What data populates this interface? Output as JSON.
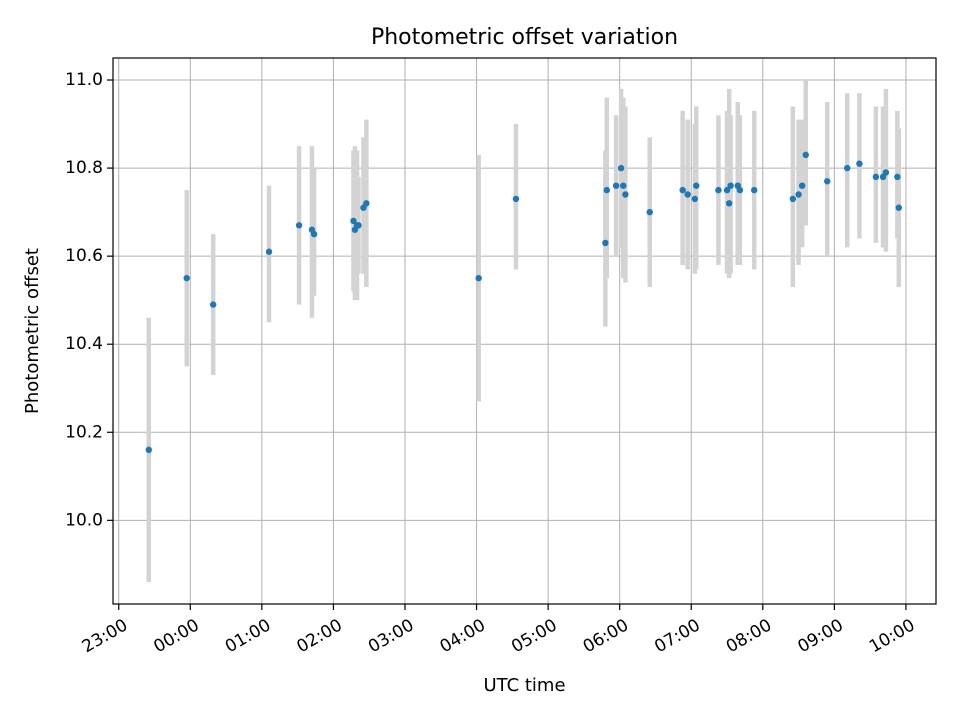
{
  "chart_data": {
    "type": "scatter",
    "title": "Photometric offset variation",
    "xlabel": "UTC time",
    "ylabel": "Photometric offset",
    "x_axis": {
      "kind": "time",
      "unit": "hours",
      "range": [
        -1.08,
        10.42
      ],
      "ticks": [
        -1,
        0,
        1,
        2,
        3,
        4,
        5,
        6,
        7,
        8,
        9,
        10
      ],
      "tick_labels": [
        "23:00",
        "00:00",
        "01:00",
        "02:00",
        "03:00",
        "04:00",
        "05:00",
        "06:00",
        "07:00",
        "08:00",
        "09:00",
        "10:00"
      ],
      "tick_label_rotation": 30
    },
    "y_axis": {
      "range": [
        9.81,
        11.05
      ],
      "ticks": [
        10.0,
        10.2,
        10.4,
        10.6,
        10.8,
        11.0
      ],
      "tick_labels": [
        "10.0",
        "10.2",
        "10.4",
        "10.6",
        "10.8",
        "11.0"
      ]
    },
    "grid": true,
    "errorbar_color": "#d3d3d3",
    "marker_color": "#1f77b4",
    "series": [
      {
        "x": [
          -0.58,
          -0.05,
          0.32,
          1.1,
          1.52,
          1.7,
          1.73,
          2.28,
          2.3,
          2.33,
          2.35,
          2.42,
          2.46,
          4.03,
          4.55,
          5.8,
          5.82,
          5.95,
          6.02,
          6.05,
          6.08,
          6.42,
          6.88,
          6.95,
          7.05,
          7.07,
          7.38,
          7.5,
          7.53,
          7.55,
          7.65,
          7.68,
          7.88,
          8.42,
          8.5,
          8.55,
          8.6,
          8.9,
          9.18,
          9.35,
          9.58,
          9.68,
          9.72,
          9.88,
          9.9
        ],
        "y": [
          10.16,
          10.55,
          10.49,
          10.61,
          10.67,
          10.66,
          10.65,
          10.68,
          10.66,
          10.67,
          10.67,
          10.71,
          10.72,
          10.55,
          10.73,
          10.63,
          10.75,
          10.76,
          10.8,
          10.76,
          10.74,
          10.7,
          10.75,
          10.74,
          10.73,
          10.76,
          10.75,
          10.75,
          10.72,
          10.76,
          10.76,
          10.75,
          10.75,
          10.73,
          10.74,
          10.76,
          10.83,
          10.77,
          10.8,
          10.81,
          10.78,
          10.78,
          10.79,
          10.78,
          10.71
        ],
        "yerr_low": [
          9.86,
          10.35,
          10.33,
          10.45,
          10.49,
          10.46,
          10.51,
          10.52,
          10.5,
          10.5,
          10.56,
          10.56,
          10.53,
          10.27,
          10.57,
          10.44,
          10.55,
          10.6,
          10.62,
          10.55,
          10.54,
          10.53,
          10.58,
          10.57,
          10.56,
          10.57,
          10.58,
          10.56,
          10.55,
          10.56,
          10.58,
          10.58,
          10.57,
          10.53,
          10.58,
          10.62,
          10.67,
          10.6,
          10.62,
          10.64,
          10.63,
          10.62,
          10.61,
          10.64,
          10.53
        ],
        "yerr_high": [
          10.46,
          10.75,
          10.65,
          10.76,
          10.85,
          10.85,
          10.8,
          10.84,
          10.85,
          10.84,
          10.78,
          10.87,
          10.91,
          10.83,
          10.9,
          10.84,
          10.96,
          10.92,
          10.98,
          10.96,
          10.94,
          10.87,
          10.93,
          10.91,
          10.9,
          10.94,
          10.92,
          10.93,
          10.98,
          10.92,
          10.95,
          10.92,
          10.93,
          10.94,
          10.91,
          10.91,
          11.0,
          10.95,
          10.97,
          10.97,
          10.94,
          10.94,
          10.98,
          10.93,
          10.89
        ]
      }
    ]
  }
}
